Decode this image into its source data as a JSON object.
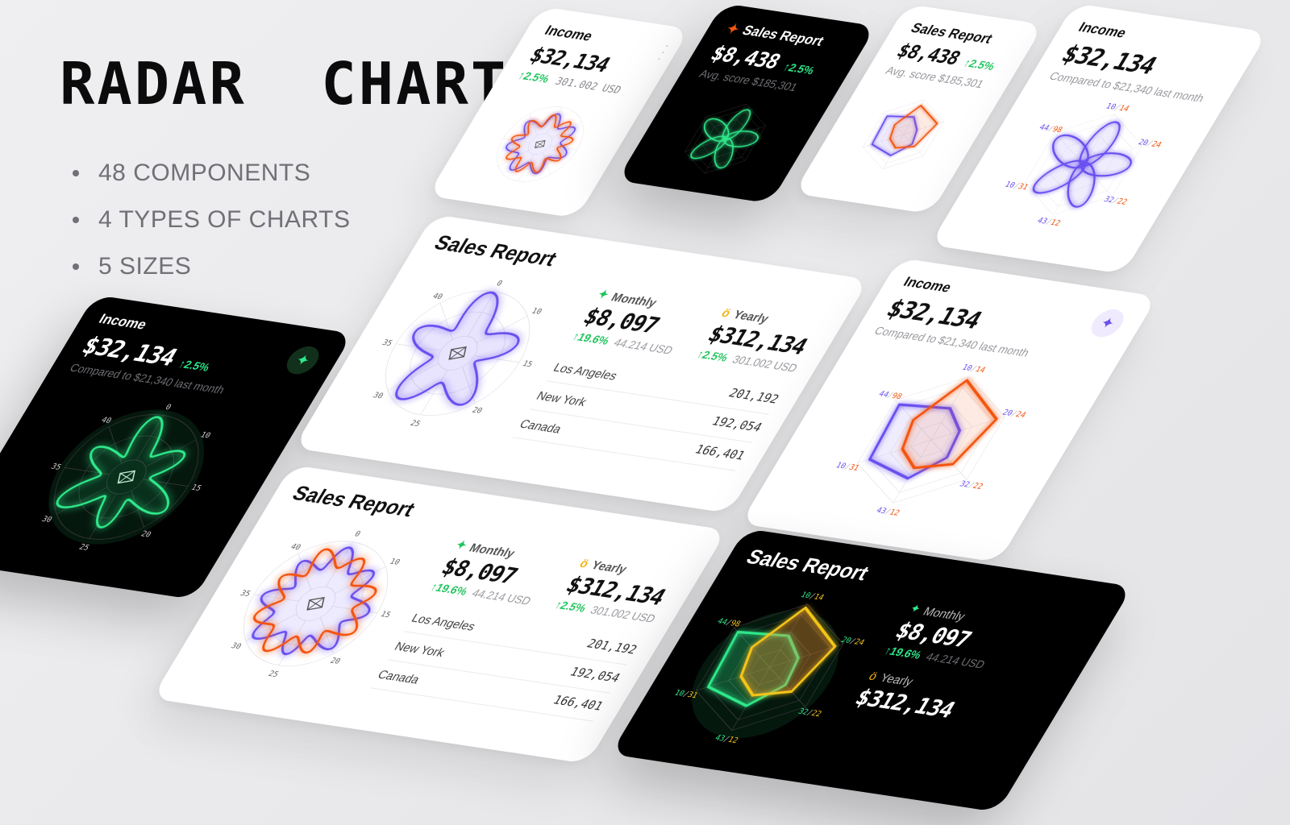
{
  "hero": {
    "title": "RADAR  CHART",
    "bullets": [
      "48 COMPONENTS",
      "4 TYPES OF CHARTS",
      "5 SIZES"
    ]
  },
  "colors": {
    "purple": "#6a4ff0",
    "orange": "#f4540f",
    "green": "#2ee88a",
    "yellow": "#f5c518",
    "positive": "#22c55e"
  },
  "cards": {
    "sales_small": {
      "icon": "sparkle-icon",
      "title": "Sales Report",
      "value": "$8,438",
      "change": "↑2.5%",
      "sub": "Avg. score $185,301"
    },
    "income": {
      "title": "Income",
      "value": "$32,134",
      "change": "↑2.5%",
      "sub": "Compared to $21,340 last month",
      "usd": "301.002 USD",
      "menu_icon": "more-vertical-icon",
      "button_icon": "sparkle-icon"
    },
    "sales_report": {
      "title": "Sales Report",
      "monthly": {
        "icon": "sparkle-icon",
        "label": "Monthly",
        "value": "$8,097",
        "change": "↑19.6%",
        "sub": "44.214 USD"
      },
      "yearly": {
        "icon": "medal-icon",
        "label": "Yearly",
        "value": "$312,134",
        "change": "↑2.5%",
        "sub": "301.002 USD"
      },
      "rows": [
        {
          "city": "Los Angeles",
          "value": "201,192"
        },
        {
          "city": "New York",
          "value": "192,054"
        },
        {
          "city": "Canada",
          "value": "166,401"
        }
      ]
    }
  },
  "chart_data": [
    {
      "type": "radar",
      "variant": "polar",
      "axis_labels": [
        "0",
        "10",
        "15",
        "20",
        "25",
        "30",
        "35",
        "40"
      ],
      "grid": true
    },
    {
      "type": "radar",
      "variant": "hexagon",
      "axis_labels": [
        "10/14",
        "20/24",
        "32/22",
        "43/12",
        "10/31",
        "44/98"
      ],
      "series": [
        {
          "values": [
            10,
            20,
            32,
            43,
            10,
            44
          ]
        },
        {
          "values": [
            14,
            24,
            22,
            12,
            31,
            98
          ]
        }
      ],
      "grid": true
    }
  ]
}
